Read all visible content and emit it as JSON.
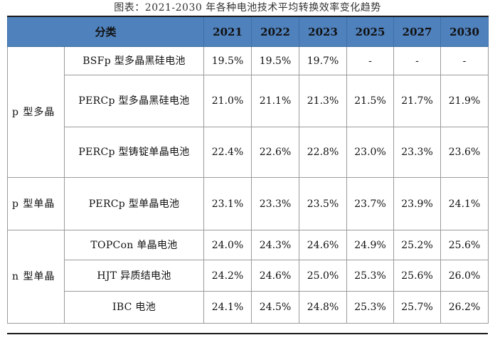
{
  "caption": "图表：2021-2030 年各种电池技术平均转换效率变化趋势",
  "header": {
    "category": "分类",
    "years": [
      "2021",
      "2022",
      "2023",
      "2025",
      "2027",
      "2030"
    ]
  },
  "groups": [
    {
      "name": "p 型多晶",
      "rows": [
        {
          "tech": "BSFp 型多晶黑硅电池",
          "values": [
            "19.5%",
            "19.5%",
            "19.7%",
            "-",
            "-",
            "-"
          ]
        },
        {
          "tech": "PERCp 型多晶黑硅电池",
          "values": [
            "21.0%",
            "21.1%",
            "21.3%",
            "21.5%",
            "21.7%",
            "21.9%"
          ]
        },
        {
          "tech": "PERCp 型铸锭单晶电池",
          "values": [
            "22.4%",
            "22.6%",
            "22.8%",
            "23.0%",
            "23.3%",
            "23.6%"
          ]
        }
      ]
    },
    {
      "name": "p 型单晶",
      "rows": [
        {
          "tech": "PERCp 型单晶电池",
          "values": [
            "23.1%",
            "23.3%",
            "23.5%",
            "23.7%",
            "23.9%",
            "24.1%"
          ]
        }
      ]
    },
    {
      "name": "n 型单晶",
      "rows": [
        {
          "tech": "TOPCon 单晶电池",
          "values": [
            "24.0%",
            "24.3%",
            "24.6%",
            "24.9%",
            "25.2%",
            "25.6%"
          ]
        },
        {
          "tech": "HJT 异质结电池",
          "values": [
            "24.2%",
            "24.6%",
            "25.0%",
            "25.3%",
            "25.6%",
            "26.0%"
          ]
        },
        {
          "tech": "IBC 电池",
          "values": [
            "24.1%",
            "24.5%",
            "24.8%",
            "25.3%",
            "25.7%",
            "26.2%"
          ]
        }
      ]
    }
  ],
  "colors": {
    "header_bg": "#4f81bd"
  }
}
